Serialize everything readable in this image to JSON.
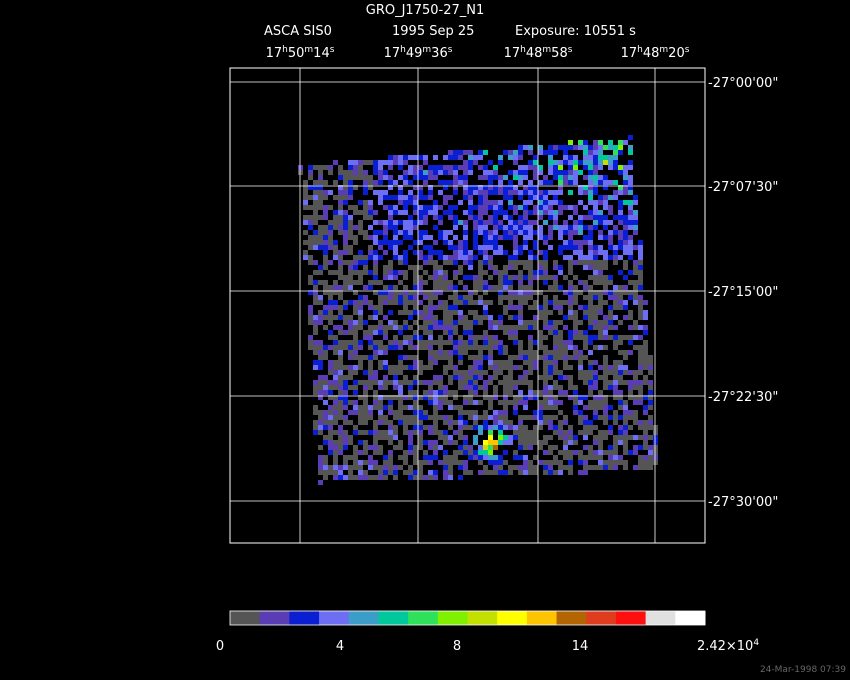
{
  "header": {
    "title": "GRO_J1750-27_N1",
    "instrument": "ASCA SIS0",
    "date": "1995 Sep 25",
    "exposure": "Exposure: 10551 s"
  },
  "ra_labels": [
    [
      "17",
      "h",
      "50",
      "m",
      "14",
      "s"
    ],
    [
      "17",
      "h",
      "49",
      "m",
      "36",
      "s"
    ],
    [
      "17",
      "h",
      "48",
      "m",
      "58",
      "s"
    ],
    [
      "17",
      "h",
      "48",
      "m",
      "20",
      "s"
    ]
  ],
  "dec_labels": [
    "-27°00'00\"",
    "-27°07'30\"",
    "-27°15'00\"",
    "-27°22'30\"",
    "-27°30'00\""
  ],
  "colorbar": {
    "colors": [
      "#555555",
      "#5a3cb4",
      "#0a1ed2",
      "#6e6ef5",
      "#3c9ec8",
      "#00c89c",
      "#2ee05a",
      "#80f000",
      "#c4e000",
      "#ffff00",
      "#ffc400",
      "#b46400",
      "#e03c1e",
      "#ff1010",
      "#e0e0e0",
      "#ffffff"
    ],
    "labels": [
      [
        "0"
      ],
      [
        "4"
      ],
      [
        "8"
      ],
      [
        "14"
      ],
      [
        "2.42×10",
        "4"
      ]
    ]
  },
  "footer": "24-Mar-1998 07:39"
}
